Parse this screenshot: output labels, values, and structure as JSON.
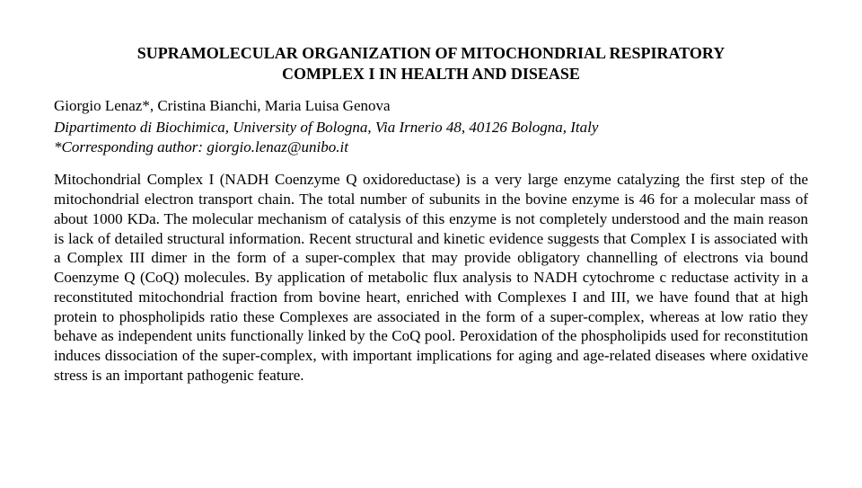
{
  "title_line1": "SUPRAMOLECULAR ORGANIZATION OF MITOCHONDRIAL RESPIRATORY",
  "title_line2": "COMPLEX I IN HEALTH AND DISEASE",
  "authors": "Giorgio Lenaz*, Cristina Bianchi, Maria Luisa Genova",
  "affiliation": "Dipartimento di Biochimica, University of Bologna, Via Irnerio 48, 40126 Bologna, Italy",
  "corresponding": "*Corresponding author: giorgio.lenaz@unibo.it",
  "abstract": "Mitochondrial Complex I (NADH Coenzyme Q oxidoreductase) is a very large enzyme catalyzing the first step of the mitochondrial electron transport chain. The total number of subunits in the bovine enzyme is 46 for a molecular mass of about 1000 KDa. The molecular mechanism of catalysis of this enzyme is not completely understood and the main reason is lack of detailed structural information. Recent structural and kinetic evidence suggests that Complex I is associated with a Complex III dimer in the form of a super-complex that may provide obligatory channelling of electrons via bound Coenzyme Q (CoQ) molecules. By application of metabolic flux analysis to NADH cytochrome c  reductase activity in  a reconstituted mitochondrial fraction from bovine heart, enriched with Complexes I and III, we have found that at high protein to phospholipids ratio these Complexes are associated in the form of a super-complex, whereas at low ratio they behave as independent units functionally linked by the CoQ pool. Peroxidation of the phospholipids used for reconstitution induces dissociation of the super-complex, with important implications for aging and age-related diseases where oxidative stress is an important pathogenic feature."
}
